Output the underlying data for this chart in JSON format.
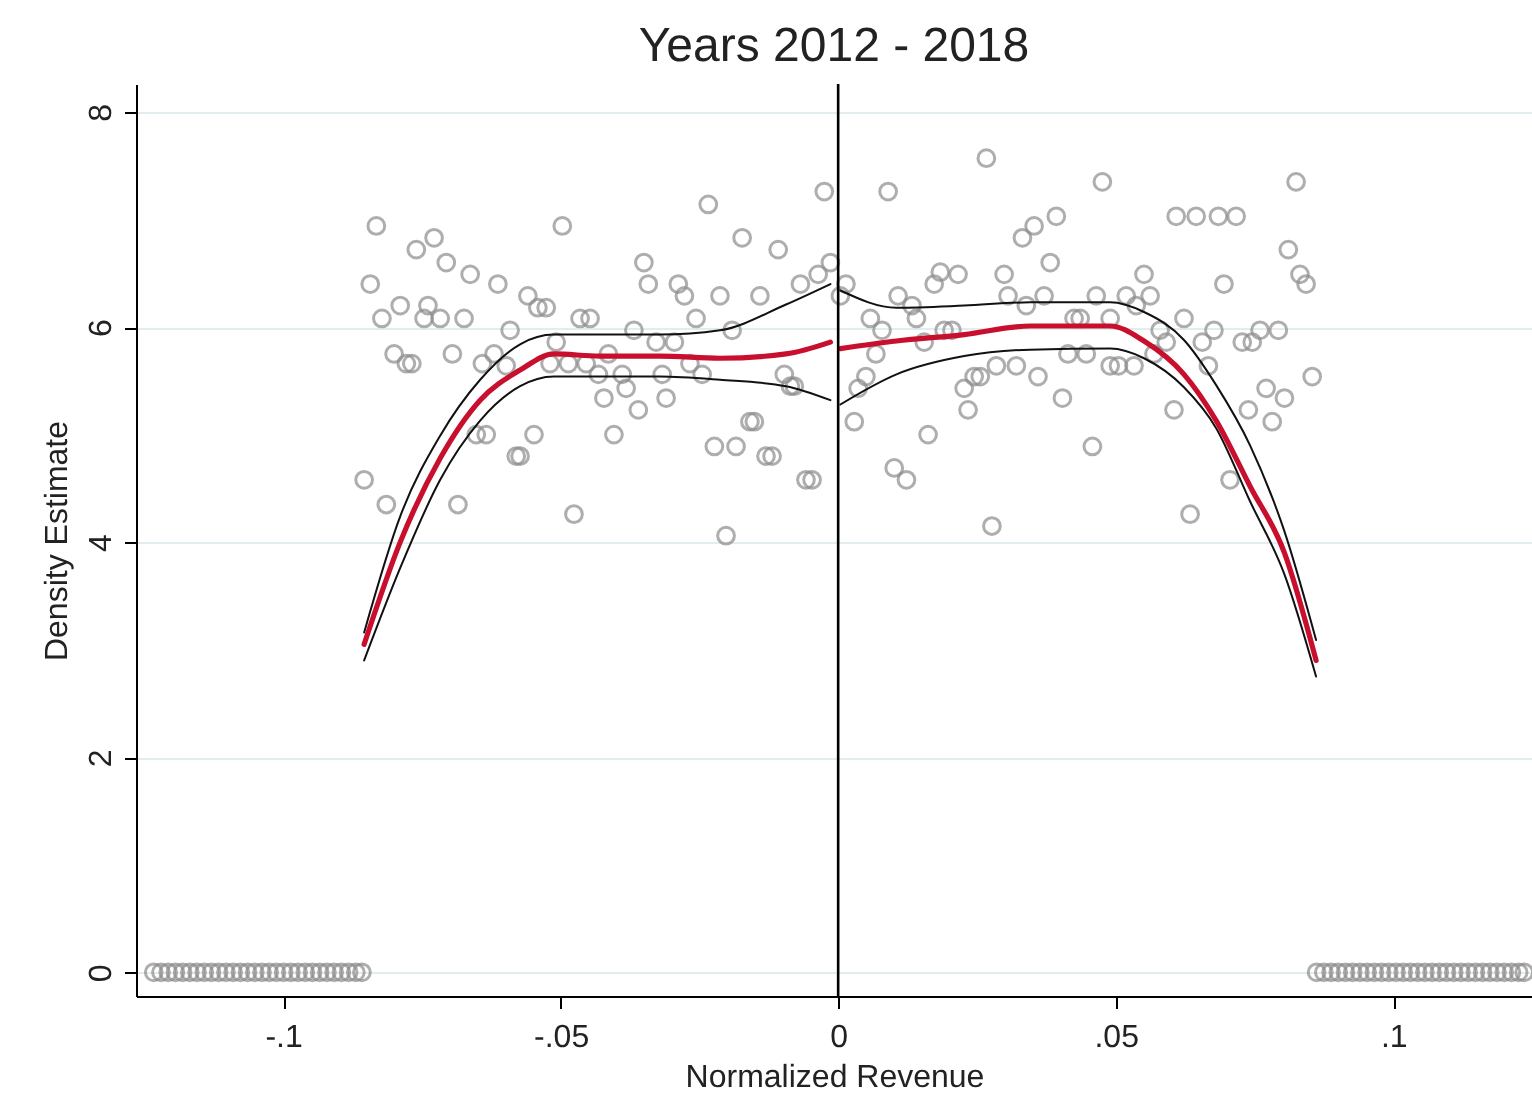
{
  "chart_data": {
    "type": "scatter",
    "title": "Years 2012 - 2018",
    "xlabel": "Normalized Revenue",
    "ylabel": "Density Estimate",
    "xlim": [
      -0.1265,
      0.125
    ],
    "ylim": [
      -0.22,
      8.26
    ],
    "xticks": [
      {
        "value": -0.1,
        "label": "-.1"
      },
      {
        "value": -0.05,
        "label": "-.05"
      },
      {
        "value": 0,
        "label": "0"
      },
      {
        "value": 0.05,
        "label": ".05"
      },
      {
        "value": 0.1,
        "label": ".1"
      }
    ],
    "yticks": [
      0,
      2,
      4,
      6,
      8
    ],
    "grid": "y",
    "ref_lines": [
      {
        "axis": "x",
        "value": 0,
        "color": "#000000"
      }
    ],
    "series": [
      {
        "marker": "circle",
        "color": "#8c8c8c",
        "x": [
          -0.0832,
          -0.0843,
          -0.0822,
          -0.0789,
          -0.076,
          -0.0728,
          -0.0706,
          -0.0663,
          -0.0739,
          -0.0746,
          -0.0717,
          -0.0674,
          -0.0613,
          -0.08,
          -0.0778,
          -0.0768,
          -0.0695,
          -0.0641,
          -0.062,
          -0.0591,
          -0.0598,
          -0.0559,
          -0.0541,
          -0.0526,
          -0.0497,
          -0.0508,
          -0.0519,
          -0.0486,
          -0.0465,
          -0.0447,
          -0.0454,
          -0.0432,
          -0.0422,
          -0.0414,
          -0.0389,
          -0.0382,
          -0.036,
          -0.0368,
          -0.035,
          -0.0342,
          -0.0328,
          -0.0317,
          -0.031,
          -0.0295,
          -0.0288,
          -0.0277,
          -0.0256,
          -0.0267,
          -0.0245,
          -0.0234,
          -0.0213,
          -0.0191,
          -0.0173,
          -0.0141,
          -0.0108,
          -0.0068,
          -0.0036,
          -0.0014,
          -0.0025,
          -0.0097,
          -0.0086,
          -0.0079,
          -0.0404,
          -0.0548,
          -0.0652,
          -0.0634,
          -0.058,
          -0.0573,
          -0.0159,
          -0.0151,
          -0.0223,
          -0.0184,
          -0.013,
          -0.0119,
          -0.0058,
          -0.0047,
          -0.0854,
          -0.0814,
          -0.0685,
          -0.0476,
          -0.0202,
          0.0267,
          0.009,
          0.0476,
          0.0825,
          0.0609,
          0.0645,
          0.0685,
          0.0717,
          0.0393,
          0.0353,
          0.0332,
          0.0382,
          0.0811,
          0.0832,
          0.0843,
          0.0695,
          0.0184,
          0.0173,
          0.0216,
          0.0299,
          0.0551,
          0.0014,
          0.0004,
          0.0108,
          0.0133,
          0.0141,
          0.0306,
          0.0371,
          0.0465,
          0.0519,
          0.0562,
          0.0537,
          0.0339,
          0.0058,
          0.0079,
          0.0155,
          0.0191,
          0.0205,
          0.0425,
          0.0436,
          0.049,
          0.0623,
          0.058,
          0.0591,
          0.0677,
          0.0656,
          0.0728,
          0.0746,
          0.076,
          0.0793,
          0.0068,
          0.0414,
          0.0447,
          0.0569,
          0.0285,
          0.0321,
          0.049,
          0.0505,
          0.0533,
          0.0667,
          0.005,
          0.0036,
          0.0245,
          0.0256,
          0.0227,
          0.036,
          0.0854,
          0.0029,
          0.0234,
          0.0404,
          0.0605,
          0.0739,
          0.0771,
          0.0804,
          0.0782,
          0.0162,
          0.0458,
          0.0101,
          0.0123,
          0.0706,
          0.0634,
          0.0277,
          -0.1233,
          -0.122,
          -0.1207,
          -0.1194,
          -0.1181,
          -0.1168,
          -0.1155,
          -0.1142,
          -0.1129,
          -0.1116,
          -0.1103,
          -0.109,
          -0.1077,
          -0.1064,
          -0.1051,
          -0.1038,
          -0.1025,
          -0.1012,
          -0.0999,
          -0.0986,
          -0.0973,
          -0.096,
          -0.0947,
          -0.0934,
          -0.0921,
          -0.0908,
          -0.0895,
          -0.0882,
          -0.0869,
          -0.0858,
          0.0862,
          0.0875,
          0.0888,
          0.0901,
          0.0914,
          0.0927,
          0.094,
          0.0953,
          0.0966,
          0.0979,
          0.0992,
          0.1005,
          0.1018,
          0.1031,
          0.1044,
          0.1057,
          0.107,
          0.1083,
          0.1096,
          0.1109,
          0.1122,
          0.1135,
          0.1148,
          0.1161,
          0.1174,
          0.1187,
          0.12,
          0.1213,
          0.1226,
          0.1236
        ],
        "values": [
          6.94,
          6.4,
          6.08,
          6.2,
          6.72,
          6.83,
          6.6,
          6.49,
          6.2,
          6.08,
          6.08,
          6.08,
          6.4,
          5.75,
          5.66,
          5.66,
          5.75,
          5.66,
          5.75,
          5.97,
          5.64,
          6.29,
          6.18,
          6.18,
          6.94,
          5.86,
          5.66,
          5.66,
          6.08,
          6.08,
          5.66,
          5.56,
          5.34,
          5.75,
          5.56,
          5.43,
          5.23,
          5.97,
          6.6,
          6.4,
          5.86,
          5.56,
          5.34,
          5.86,
          6.4,
          6.29,
          6.08,
          5.66,
          5.56,
          7.14,
          6.29,
          5.97,
          6.83,
          6.29,
          6.72,
          6.4,
          6.49,
          6.6,
          7.26,
          5.56,
          5.45,
          5.45,
          5.0,
          5.0,
          5.0,
          5.0,
          4.8,
          4.8,
          5.12,
          5.12,
          4.89,
          4.89,
          4.8,
          4.8,
          4.58,
          4.58,
          4.58,
          4.35,
          4.35,
          4.26,
          4.06,
          7.57,
          7.26,
          7.35,
          7.35,
          7.03,
          7.03,
          7.03,
          7.03,
          7.03,
          6.94,
          6.83,
          6.6,
          6.72,
          6.49,
          6.4,
          6.4,
          6.51,
          6.4,
          6.49,
          6.49,
          6.49,
          6.4,
          6.29,
          6.29,
          6.2,
          6.08,
          6.29,
          6.29,
          6.29,
          6.29,
          6.29,
          6.2,
          6.2,
          6.08,
          5.97,
          5.86,
          5.97,
          5.97,
          6.08,
          6.08,
          6.08,
          6.08,
          5.97,
          5.86,
          5.97,
          5.86,
          5.86,
          5.86,
          5.97,
          5.97,
          5.75,
          5.75,
          5.75,
          5.75,
          5.64,
          5.64,
          5.64,
          5.64,
          5.64,
          5.64,
          5.54,
          5.43,
          5.54,
          5.54,
          5.43,
          5.54,
          5.54,
          5.12,
          5.23,
          5.34,
          5.23,
          5.23,
          5.43,
          5.34,
          5.12,
          5.0,
          4.89,
          4.69,
          4.58,
          4.58,
          4.26,
          4.15,
          0,
          0,
          0,
          0,
          0,
          0,
          0,
          0,
          0,
          0,
          0,
          0,
          0,
          0,
          0,
          0,
          0,
          0,
          0,
          0,
          0,
          0,
          0,
          0,
          0,
          0,
          0,
          0,
          0,
          0,
          0,
          0,
          0,
          0,
          0,
          0,
          0,
          0,
          0,
          0,
          0,
          0,
          0,
          0,
          0,
          0,
          0,
          0,
          0,
          0,
          0,
          0,
          0,
          0,
          0,
          0,
          0,
          0,
          0,
          0
        ]
      },
      {
        "type": "line",
        "marker": "none",
        "color": "#111111",
        "x": [
          -0.0854,
          -0.0789,
          -0.0717,
          -0.0645,
          -0.0573,
          -0.0512,
          -0.0429,
          -0.0321,
          -0.0213,
          -0.0094,
          -0.0014
        ],
        "values": [
          3.16,
          4.24,
          4.99,
          5.51,
          5.84,
          5.93,
          5.93,
          5.93,
          5.97,
          6.21,
          6.4
        ]
      },
      {
        "type": "line",
        "marker": "none",
        "color": "#111111",
        "x": [
          -0.0854,
          -0.0789,
          -0.0717,
          -0.0645,
          -0.0573,
          -0.0512,
          -0.0429,
          -0.0321,
          -0.0213,
          -0.0094,
          -0.0014
        ],
        "values": [
          2.9,
          3.76,
          4.58,
          5.13,
          5.45,
          5.54,
          5.54,
          5.54,
          5.51,
          5.45,
          5.32
        ]
      },
      {
        "type": "line",
        "marker": "none",
        "color": "#111111",
        "x": [
          0.0004,
          0.0105,
          0.0227,
          0.0346,
          0.049,
          0.0551,
          0.0623,
          0.0681,
          0.0742,
          0.0804,
          0.0861
        ],
        "values": [
          6.34,
          6.18,
          6.2,
          6.23,
          6.23,
          6.14,
          5.88,
          5.46,
          4.9,
          4.1,
          3.09
        ]
      },
      {
        "type": "line",
        "marker": "none",
        "color": "#111111",
        "x": [
          0.0004,
          0.0105,
          0.0227,
          0.0346,
          0.049,
          0.0551,
          0.0623,
          0.0681,
          0.0742,
          0.0804,
          0.0861
        ],
        "values": [
          5.28,
          5.56,
          5.73,
          5.79,
          5.8,
          5.71,
          5.44,
          5.06,
          4.38,
          3.7,
          2.75
        ]
      },
      {
        "type": "line",
        "marker": "none",
        "color": "#c8102e",
        "x": [
          -0.0854,
          -0.0789,
          -0.0717,
          -0.0645,
          -0.0573,
          -0.0512,
          -0.0429,
          -0.0321,
          -0.0213,
          -0.0094,
          -0.0014
        ],
        "values": [
          3.05,
          4.0,
          4.78,
          5.32,
          5.6,
          5.75,
          5.73,
          5.73,
          5.71,
          5.75,
          5.86
        ]
      },
      {
        "type": "line",
        "marker": "none",
        "color": "#c8102e",
        "x": [
          0.0004,
          0.0105,
          0.0227,
          0.0346,
          0.049,
          0.0551,
          0.0623,
          0.0681,
          0.0742,
          0.0804,
          0.0861
        ],
        "values": [
          5.8,
          5.87,
          5.93,
          6.01,
          6.01,
          5.87,
          5.56,
          5.13,
          4.52,
          3.9,
          2.9
        ]
      }
    ]
  }
}
